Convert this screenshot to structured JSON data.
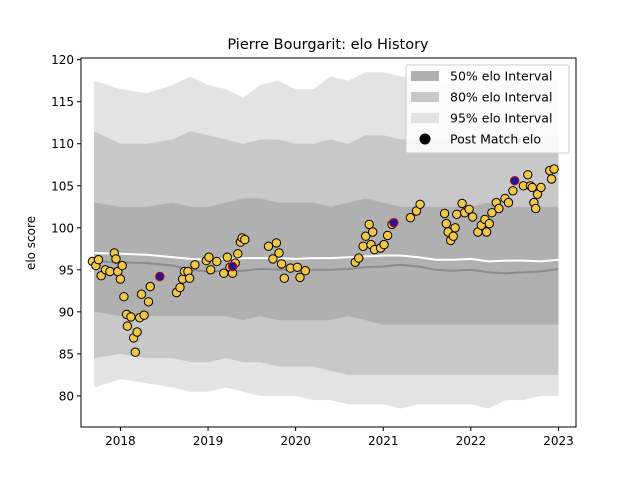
{
  "chart_data": {
    "type": "scatter",
    "title": "Pierre Bourgarit: elo History",
    "xlabel": "",
    "ylabel": "elo score",
    "xlim": [
      2017.55,
      2023.2
    ],
    "ylim": [
      76.3,
      120.2
    ],
    "x_ticks": [
      2018,
      2019,
      2020,
      2021,
      2022,
      2023
    ],
    "y_ticks": [
      80,
      85,
      90,
      95,
      100,
      105,
      110,
      115,
      120
    ],
    "grid": false,
    "legend_position": "top-right",
    "legend": [
      {
        "label": "50% elo Interval",
        "kind": "band",
        "color": "#b0b0b0"
      },
      {
        "label": "80% elo Interval",
        "kind": "band",
        "color": "#c8c8c8"
      },
      {
        "label": "95% elo Interval",
        "kind": "band",
        "color": "#e3e3e3"
      },
      {
        "label": "Post Match elo",
        "kind": "marker",
        "color": "#000000"
      }
    ],
    "colors": {
      "band95": "#e3e3e3",
      "band80": "#c8c8c8",
      "band50": "#b0b0b0",
      "median_line": "#8c8c8c",
      "mean_line": "#ffffff",
      "marker_fill": "#f2c744",
      "marker_edge": "#000000",
      "highlight_fill": "#1c1a9a",
      "highlight_edge": "#cc0000"
    },
    "bands": {
      "x": [
        2017.7,
        2018.0,
        2018.3,
        2018.6,
        2018.8,
        2019.0,
        2019.2,
        2019.4,
        2019.6,
        2019.8,
        2020.0,
        2020.2,
        2020.4,
        2020.6,
        2020.8,
        2021.0,
        2021.2,
        2021.4,
        2021.6,
        2021.8,
        2022.0,
        2022.2,
        2022.4,
        2022.6,
        2022.8,
        2023.0
      ],
      "p95_upper": [
        117.5,
        116.5,
        116.0,
        117.0,
        118.0,
        117.0,
        116.5,
        115.5,
        117.0,
        117.5,
        116.5,
        116.5,
        118.0,
        117.5,
        118.5,
        118.5,
        118.0,
        118.0,
        117.0,
        117.5,
        118.0,
        117.5,
        118.0,
        117.0,
        118.0,
        117.5
      ],
      "p95_lower": [
        81.0,
        82.0,
        81.5,
        81.0,
        80.5,
        80.5,
        81.0,
        80.5,
        80.0,
        80.0,
        80.0,
        79.5,
        79.5,
        79.0,
        79.0,
        79.0,
        78.5,
        79.0,
        79.0,
        79.0,
        79.0,
        78.5,
        79.5,
        79.5,
        80.0,
        80.0
      ],
      "p80_upper": [
        111.5,
        110.0,
        110.0,
        110.5,
        111.5,
        111.0,
        110.5,
        110.0,
        110.5,
        110.5,
        110.0,
        110.0,
        110.5,
        110.0,
        111.0,
        111.0,
        110.5,
        110.5,
        110.5,
        110.5,
        111.0,
        111.0,
        111.5,
        111.0,
        111.0,
        111.0
      ],
      "p80_lower": [
        84.5,
        85.0,
        84.5,
        84.5,
        84.0,
        84.0,
        84.5,
        84.0,
        84.0,
        83.5,
        83.5,
        83.5,
        83.0,
        82.5,
        82.5,
        82.5,
        82.5,
        82.5,
        82.5,
        82.5,
        82.5,
        82.5,
        82.5,
        82.5,
        82.5,
        82.5
      ],
      "p50_upper": [
        103.0,
        102.5,
        102.5,
        103.0,
        102.5,
        102.5,
        103.0,
        103.5,
        103.5,
        103.0,
        103.0,
        103.0,
        102.5,
        103.0,
        103.5,
        103.0,
        102.5,
        102.5,
        102.5,
        102.5,
        102.5,
        103.0,
        102.5,
        102.5,
        102.5,
        102.5
      ],
      "p50_lower": [
        90.0,
        89.5,
        89.5,
        89.5,
        89.5,
        89.5,
        89.5,
        89.0,
        89.5,
        89.0,
        89.0,
        89.0,
        89.0,
        89.5,
        89.0,
        88.5,
        88.5,
        88.5,
        88.5,
        88.5,
        88.5,
        88.5,
        88.5,
        88.5,
        88.5,
        88.5
      ],
      "median": [
        96.0,
        95.9,
        95.8,
        95.5,
        95.0,
        94.8,
        94.9,
        94.9,
        95.1,
        95.0,
        95.0,
        95.0,
        95.0,
        95.1,
        95.3,
        95.4,
        95.6,
        95.4,
        95.0,
        94.9,
        95.0,
        94.7,
        94.6,
        94.7,
        94.8,
        95.1
      ],
      "mean": [
        97.0,
        96.9,
        96.8,
        96.5,
        96.3,
        96.2,
        96.3,
        96.4,
        96.4,
        96.4,
        96.3,
        96.4,
        96.4,
        96.5,
        96.6,
        96.7,
        96.7,
        96.5,
        96.2,
        96.2,
        96.3,
        96.0,
        96.1,
        96.1,
        96.0,
        96.2
      ]
    },
    "series": [
      {
        "name": "Post Match elo",
        "points": [
          [
            2017.68,
            96.0
          ],
          [
            2017.72,
            95.5
          ],
          [
            2017.75,
            96.2
          ],
          [
            2017.78,
            94.3
          ],
          [
            2017.83,
            95.0
          ],
          [
            2017.88,
            94.8
          ],
          [
            2017.93,
            97.0
          ],
          [
            2017.95,
            96.3
          ],
          [
            2017.97,
            94.8
          ],
          [
            2018.0,
            93.9
          ],
          [
            2018.02,
            95.5
          ],
          [
            2018.04,
            91.8
          ],
          [
            2018.07,
            89.7
          ],
          [
            2018.08,
            88.3
          ],
          [
            2018.12,
            89.4
          ],
          [
            2018.15,
            86.9
          ],
          [
            2018.17,
            85.2
          ],
          [
            2018.19,
            87.6
          ],
          [
            2018.22,
            89.3
          ],
          [
            2018.24,
            92.1
          ],
          [
            2018.27,
            89.6
          ],
          [
            2018.32,
            91.2
          ],
          [
            2018.34,
            93.0
          ],
          [
            2018.64,
            92.3
          ],
          [
            2018.68,
            92.9
          ],
          [
            2018.71,
            93.9
          ],
          [
            2018.73,
            94.8
          ],
          [
            2018.77,
            94.8
          ],
          [
            2018.79,
            94.0
          ],
          [
            2018.85,
            95.6
          ],
          [
            2018.98,
            96.1
          ],
          [
            2019.01,
            96.5
          ],
          [
            2019.03,
            95.0
          ],
          [
            2019.1,
            96.0
          ],
          [
            2019.18,
            94.6
          ],
          [
            2019.22,
            96.5
          ],
          [
            2019.25,
            95.3
          ],
          [
            2019.28,
            94.6
          ],
          [
            2019.31,
            95.8
          ],
          [
            2019.34,
            96.9
          ],
          [
            2019.37,
            98.3
          ],
          [
            2019.39,
            98.8
          ],
          [
            2019.42,
            98.6
          ],
          [
            2019.69,
            97.8
          ],
          [
            2019.74,
            96.3
          ],
          [
            2019.78,
            98.2
          ],
          [
            2019.81,
            97.0
          ],
          [
            2019.84,
            95.7
          ],
          [
            2019.87,
            94.0
          ],
          [
            2019.94,
            95.2
          ],
          [
            2020.02,
            95.3
          ],
          [
            2020.05,
            94.1
          ],
          [
            2020.11,
            94.9
          ],
          [
            2020.68,
            95.9
          ],
          [
            2020.72,
            96.4
          ],
          [
            2020.77,
            97.8
          ],
          [
            2020.8,
            99.0
          ],
          [
            2020.84,
            100.4
          ],
          [
            2020.86,
            98.0
          ],
          [
            2020.88,
            99.5
          ],
          [
            2020.9,
            97.4
          ],
          [
            2020.97,
            97.6
          ],
          [
            2021.01,
            98.0
          ],
          [
            2021.05,
            99.1
          ],
          [
            2021.1,
            100.4
          ],
          [
            2021.31,
            101.2
          ],
          [
            2021.38,
            102.0
          ],
          [
            2021.42,
            102.8
          ],
          [
            2021.7,
            101.7
          ],
          [
            2021.72,
            100.5
          ],
          [
            2021.74,
            99.5
          ],
          [
            2021.77,
            98.5
          ],
          [
            2021.8,
            99.0
          ],
          [
            2021.82,
            100.0
          ],
          [
            2021.84,
            101.6
          ],
          [
            2021.9,
            102.9
          ],
          [
            2021.93,
            101.8
          ],
          [
            2021.98,
            102.2
          ],
          [
            2022.02,
            101.3
          ],
          [
            2022.08,
            99.5
          ],
          [
            2022.12,
            100.3
          ],
          [
            2022.16,
            101.0
          ],
          [
            2022.18,
            99.5
          ],
          [
            2022.21,
            100.5
          ],
          [
            2022.24,
            101.8
          ],
          [
            2022.29,
            103.0
          ],
          [
            2022.32,
            102.3
          ],
          [
            2022.39,
            103.5
          ],
          [
            2022.43,
            103.0
          ],
          [
            2022.48,
            104.4
          ],
          [
            2022.6,
            105.0
          ],
          [
            2022.65,
            106.3
          ],
          [
            2022.68,
            105.0
          ],
          [
            2022.7,
            104.8
          ],
          [
            2022.72,
            103.0
          ],
          [
            2022.74,
            102.3
          ],
          [
            2022.76,
            104.0
          ],
          [
            2022.8,
            104.8
          ],
          [
            2022.9,
            106.8
          ],
          [
            2022.92,
            105.8
          ],
          [
            2022.95,
            107.0
          ]
        ]
      },
      {
        "name": "highlighted",
        "points": [
          [
            2018.45,
            94.2
          ],
          [
            2019.28,
            95.4
          ],
          [
            2021.12,
            100.6
          ],
          [
            2022.5,
            105.6
          ]
        ]
      }
    ]
  }
}
